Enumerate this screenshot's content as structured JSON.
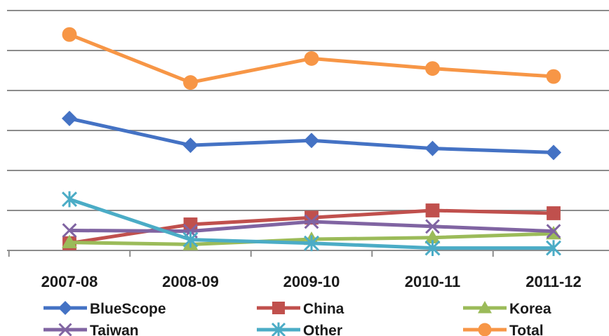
{
  "chart_data": {
    "type": "line",
    "title": "",
    "xlabel": "",
    "ylabel": "",
    "categories": [
      "2007-08",
      "2008-09",
      "2009-10",
      "2010-11",
      "2011-12"
    ],
    "ylim": [
      0,
      6
    ],
    "y_tick_labels_shown": false,
    "grid": true,
    "legend_position": "bottom",
    "series": [
      {
        "name": "BlueScope",
        "color": "#4472C4",
        "marker": "diamond",
        "values": [
          3.3,
          2.63,
          2.75,
          2.55,
          2.45
        ]
      },
      {
        "name": "China",
        "color": "#C0504D",
        "marker": "square",
        "values": [
          0.18,
          0.65,
          0.82,
          1.0,
          0.93
        ]
      },
      {
        "name": "Korea",
        "color": "#9BBB59",
        "marker": "triangle",
        "values": [
          0.2,
          0.15,
          0.28,
          0.32,
          0.42
        ]
      },
      {
        "name": "Taiwan",
        "color": "#8064A2",
        "marker": "x",
        "values": [
          0.5,
          0.48,
          0.72,
          0.6,
          0.48
        ]
      },
      {
        "name": "Other",
        "color": "#4BACC6",
        "marker": "star",
        "values": [
          1.28,
          0.27,
          0.18,
          0.06,
          0.06
        ]
      },
      {
        "name": "Total",
        "color": "#F79646",
        "marker": "circle",
        "values": [
          5.4,
          4.2,
          4.8,
          4.55,
          4.35
        ]
      }
    ]
  }
}
